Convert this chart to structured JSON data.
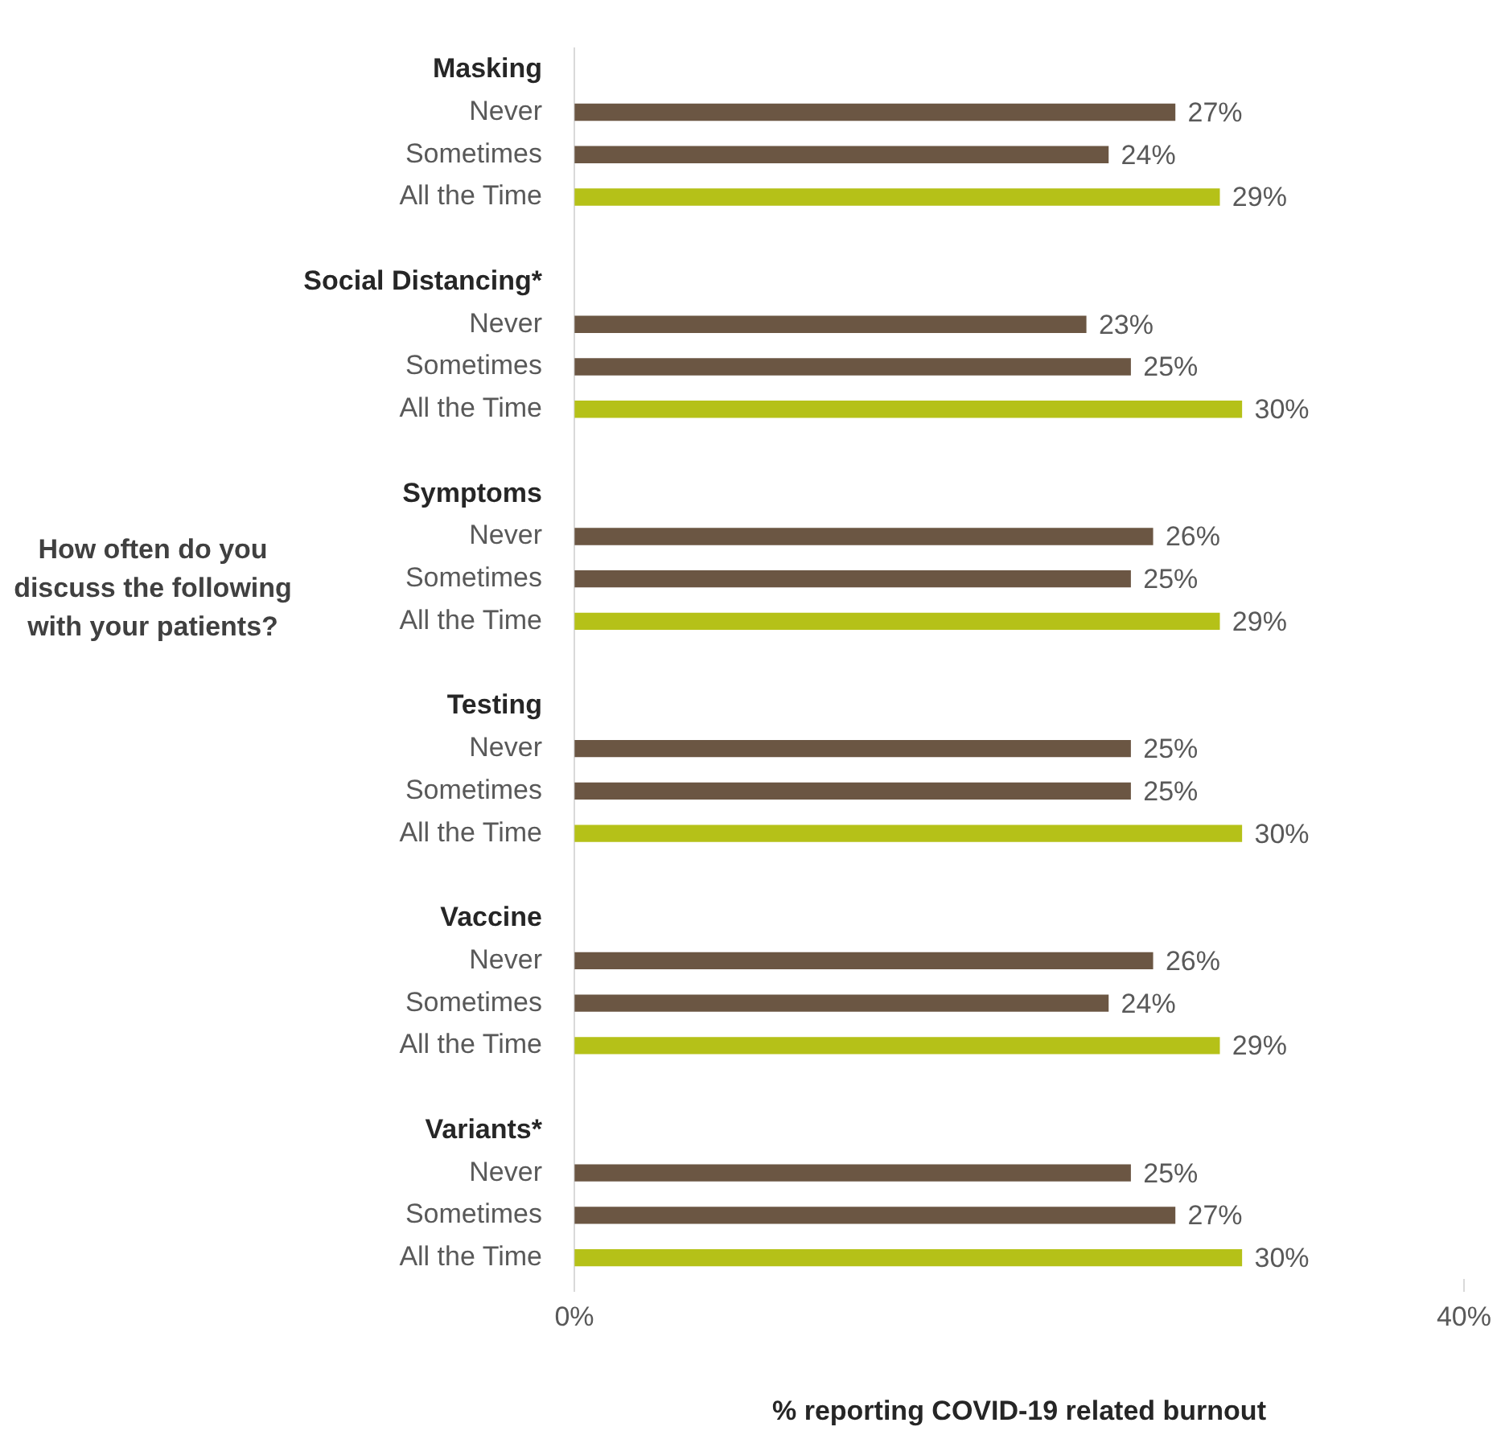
{
  "chart_data": {
    "type": "bar",
    "orientation": "horizontal",
    "ylabel": "How often do you discuss the following with your patients?",
    "xlabel": "% reporting COVID-19 related burnout",
    "categories": [
      "Masking",
      "Never",
      "Sometimes",
      "All the Time",
      null,
      "Social Distancing*",
      "Never",
      "Sometimes",
      "All the Time",
      null,
      "Symptoms",
      "Never",
      "Sometimes",
      "All the Time",
      null,
      "Testing",
      "Never",
      "Sometimes",
      "All the Time",
      null,
      "Vaccine",
      "Never",
      "Sometimes",
      "All the Time",
      null,
      "Variants*",
      "Never",
      "Sometimes",
      "All the Time"
    ],
    "values": [
      null,
      27,
      24,
      29,
      null,
      null,
      23,
      25,
      30,
      null,
      null,
      26,
      25,
      29,
      null,
      null,
      25,
      25,
      30,
      null,
      null,
      26,
      24,
      29,
      null,
      null,
      25,
      27,
      30
    ],
    "value_labels": [
      null,
      "27%",
      "24%",
      "29%",
      null,
      null,
      "23%",
      "25%",
      "30%",
      null,
      null,
      "26%",
      "25%",
      "29%",
      null,
      null,
      "25%",
      "25%",
      "30%",
      null,
      null,
      "26%",
      "24%",
      "29%",
      null,
      null,
      "25%",
      "27%",
      "30%"
    ],
    "colors": [
      null,
      "#6b5643",
      "#6b5643",
      "#b5c118",
      null,
      null,
      "#6b5643",
      "#6b5643",
      "#b5c118",
      null,
      null,
      "#6b5643",
      "#6b5643",
      "#b5c118",
      null,
      null,
      "#6b5643",
      "#6b5643",
      "#b5c118",
      null,
      null,
      "#6b5643",
      "#6b5643",
      "#b5c118",
      null,
      null,
      "#6b5643",
      "#6b5643",
      "#b5c118"
    ],
    "xlim": [
      0,
      40
    ],
    "xticks": [
      {
        "value": 0,
        "label": "0%"
      },
      {
        "value": 40,
        "label": "40%"
      }
    ],
    "legend": false,
    "grid": false
  }
}
